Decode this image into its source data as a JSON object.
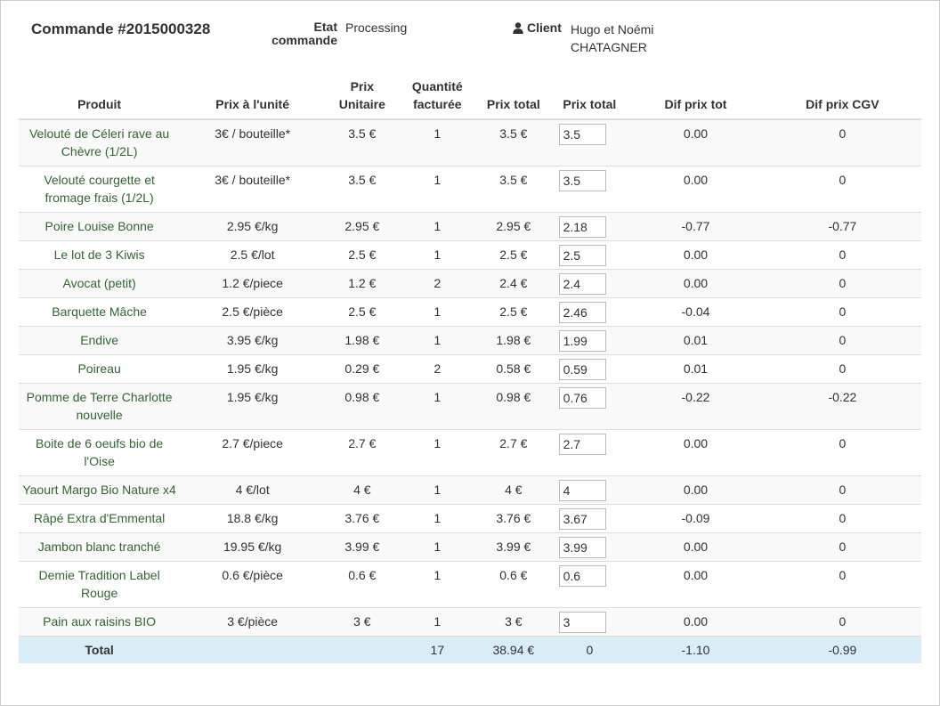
{
  "order": {
    "title": "Commande #2015000328",
    "etat_label": "Etat commande",
    "etat_value": "Processing",
    "client_label": "Client",
    "client_name": "Hugo et Noémi CHATAGNER",
    "user_icon": "user-icon"
  },
  "table": {
    "headers": [
      "Produit",
      "Prix à l'unité",
      "Prix Unitaire",
      "Quantité facturée",
      "Prix total",
      "Prix total",
      "Dif prix tot",
      "Dif prix CGV"
    ],
    "rows": [
      {
        "product": "Velouté de Céleri rave au Chèvre (1/2L)",
        "unit_price": "3€ / bouteille*",
        "prix_unitaire": "3.5 €",
        "quantity": "1",
        "prix_total": "3.5 €",
        "input_total": "3.5",
        "dif_tot": "0.00",
        "dif_cgv": "0"
      },
      {
        "product": "Velouté courgette et fromage frais (1/2L)",
        "unit_price": "3€ / bouteille*",
        "prix_unitaire": "3.5 €",
        "quantity": "1",
        "prix_total": "3.5 €",
        "input_total": "3.5",
        "dif_tot": "0.00",
        "dif_cgv": "0"
      },
      {
        "product": "Poire Louise Bonne",
        "unit_price": "2.95 €/kg",
        "prix_unitaire": "2.95 €",
        "quantity": "1",
        "prix_total": "2.95 €",
        "input_total": "2.18",
        "dif_tot": "-0.77",
        "dif_cgv": "-0.77"
      },
      {
        "product": "Le lot de 3 Kiwis",
        "unit_price": "2.5 €/lot",
        "prix_unitaire": "2.5 €",
        "quantity": "1",
        "prix_total": "2.5 €",
        "input_total": "2.5",
        "dif_tot": "0.00",
        "dif_cgv": "0"
      },
      {
        "product": "Avocat (petit)",
        "unit_price": "1.2 €/piece",
        "prix_unitaire": "1.2 €",
        "quantity": "2",
        "prix_total": "2.4 €",
        "input_total": "2.4",
        "dif_tot": "0.00",
        "dif_cgv": "0"
      },
      {
        "product": "Barquette Mâche",
        "unit_price": "2.5 €/pièce",
        "prix_unitaire": "2.5 €",
        "quantity": "1",
        "prix_total": "2.5 €",
        "input_total": "2.46",
        "dif_tot": "-0.04",
        "dif_cgv": "0"
      },
      {
        "product": "Endive",
        "unit_price": "3.95 €/kg",
        "prix_unitaire": "1.98 €",
        "quantity": "1",
        "prix_total": "1.98 €",
        "input_total": "1.99",
        "dif_tot": "0.01",
        "dif_cgv": "0"
      },
      {
        "product": "Poireau",
        "unit_price": "1.95 €/kg",
        "prix_unitaire": "0.29 €",
        "quantity": "2",
        "prix_total": "0.58 €",
        "input_total": "0.59",
        "dif_tot": "0.01",
        "dif_cgv": "0"
      },
      {
        "product": "Pomme de Terre Charlotte nouvelle",
        "unit_price": "1.95 €/kg",
        "prix_unitaire": "0.98 €",
        "quantity": "1",
        "prix_total": "0.98 €",
        "input_total": "0.76",
        "dif_tot": "-0.22",
        "dif_cgv": "-0.22"
      },
      {
        "product": "Boite de 6 oeufs bio de l'Oise",
        "unit_price": "2.7 €/piece",
        "prix_unitaire": "2.7 €",
        "quantity": "1",
        "prix_total": "2.7 €",
        "input_total": "2.7",
        "dif_tot": "0.00",
        "dif_cgv": "0"
      },
      {
        "product": "Yaourt Margo Bio Nature x4",
        "unit_price": "4 €/lot",
        "prix_unitaire": "4 €",
        "quantity": "1",
        "prix_total": "4 €",
        "input_total": "4",
        "dif_tot": "0.00",
        "dif_cgv": "0"
      },
      {
        "product": "Râpé Extra d'Emmental",
        "unit_price": "18.8 €/kg",
        "prix_unitaire": "3.76 €",
        "quantity": "1",
        "prix_total": "3.76 €",
        "input_total": "3.67",
        "dif_tot": "-0.09",
        "dif_cgv": "0"
      },
      {
        "product": "Jambon blanc tranché",
        "unit_price": "19.95 €/kg",
        "prix_unitaire": "3.99 €",
        "quantity": "1",
        "prix_total": "3.99 €",
        "input_total": "3.99",
        "dif_tot": "0.00",
        "dif_cgv": "0"
      },
      {
        "product": "Demie Tradition Label Rouge",
        "unit_price": "0.6 €/pièce",
        "prix_unitaire": "0.6 €",
        "quantity": "1",
        "prix_total": "0.6 €",
        "input_total": "0.6",
        "dif_tot": "0.00",
        "dif_cgv": "0"
      },
      {
        "product": "Pain aux raisins BIO",
        "unit_price": "3 €/pièce",
        "prix_unitaire": "3 €",
        "quantity": "1",
        "prix_total": "3 €",
        "input_total": "3",
        "dif_tot": "0.00",
        "dif_cgv": "0"
      }
    ],
    "total": {
      "label": "Total",
      "unit_price": "",
      "prix_unitaire": "",
      "quantity": "17",
      "prix_total": "38.94 €",
      "input_total": "0",
      "dif_tot": "-1.10",
      "dif_cgv": "-0.99"
    }
  },
  "colors": {
    "link": "#336633",
    "total_row": "#d9edf7",
    "stripe": "#f9f9f9"
  }
}
